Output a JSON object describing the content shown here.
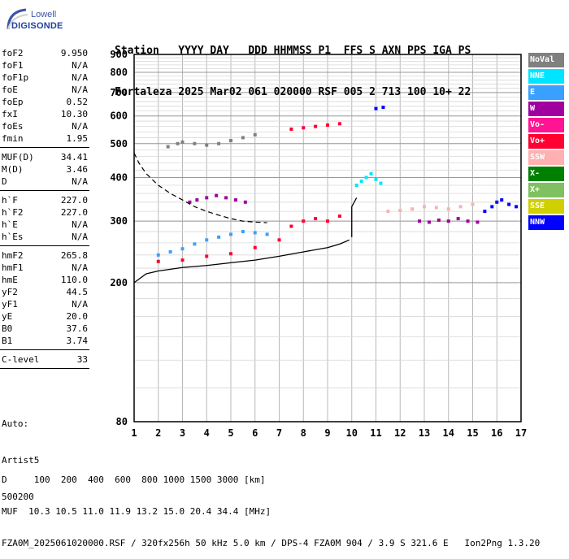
{
  "logo": {
    "line1": "Lowell",
    "line2": "DIGISONDE"
  },
  "header": {
    "line1": "Station   YYYY DAY   DDD HHMMSS P1  FFS S AXN PPS IGA PS",
    "line2": "Fortaleza 2025 Mar02 061 020000 RSF 005 2 713 100 10+ 22"
  },
  "params": [
    [
      {
        "name": "foF2",
        "value": "9.950"
      },
      {
        "name": "foF1",
        "value": "N/A"
      },
      {
        "name": "foF1p",
        "value": "N/A"
      },
      {
        "name": "foE",
        "value": "N/A"
      },
      {
        "name": "foEp",
        "value": "0.52"
      },
      {
        "name": "fxI",
        "value": "10.30"
      },
      {
        "name": "foEs",
        "value": "N/A"
      },
      {
        "name": "fmin",
        "value": "1.95"
      }
    ],
    [
      {
        "name": "MUF(D)",
        "value": "34.41"
      },
      {
        "name": "M(D)",
        "value": "3.46"
      },
      {
        "name": "D",
        "value": "N/A"
      }
    ],
    [
      {
        "name": "h`F",
        "value": "227.0"
      },
      {
        "name": "h`F2",
        "value": "227.0"
      },
      {
        "name": "h`E",
        "value": "N/A"
      },
      {
        "name": "h`Es",
        "value": "N/A"
      }
    ],
    [
      {
        "name": "hmF2",
        "value": "265.8"
      },
      {
        "name": "hmF1",
        "value": "N/A"
      },
      {
        "name": "hmE",
        "value": "110.0"
      },
      {
        "name": "yF2",
        "value": "44.5"
      },
      {
        "name": "yF1",
        "value": "N/A"
      },
      {
        "name": "yE",
        "value": "20.0"
      },
      {
        "name": "B0",
        "value": "37.6"
      },
      {
        "name": "B1",
        "value": "3.74"
      }
    ],
    [
      {
        "name": "C-level",
        "value": "33"
      }
    ]
  ],
  "auto": {
    "line1": "Auto:",
    "line2": "Artist5",
    "line3": "500200"
  },
  "legend": [
    {
      "label": "NoVal",
      "color": "#808080"
    },
    {
      "label": "NNE",
      "color": "#00e5ff"
    },
    {
      "label": "E",
      "color": "#3aa0ff"
    },
    {
      "label": "W",
      "color": "#a000a0"
    },
    {
      "label": "Vo-",
      "color": "#ff1493"
    },
    {
      "label": "Vo+",
      "color": "#ff0030"
    },
    {
      "label": "SSW",
      "color": "#ffb0b0"
    },
    {
      "label": "X-",
      "color": "#008000"
    },
    {
      "label": "X+",
      "color": "#80c060"
    },
    {
      "label": "SSE",
      "color": "#d0d000"
    },
    {
      "label": "NNW",
      "color": "#0000ff"
    }
  ],
  "bottom": {
    "line1": "D     100  200  400  600  800 1000 1500 3000 [km]",
    "line2": "MUF  10.3 10.5 11.0 11.9 13.2 15.0 20.4 34.4 [MHz]",
    "line3": "FZA0M_2025061020000.RSF / 320fx256h 50 kHz 5.0 km / DPS-4 FZA0M 904 / 3.9 S 321.6 E   Ion2Png 1.3.20"
  },
  "chart_data": {
    "type": "scatter",
    "xlim": [
      1,
      17
    ],
    "ylim": [
      80,
      900
    ],
    "x_ticks": [
      1,
      2,
      3,
      4,
      5,
      6,
      7,
      8,
      9,
      10,
      11,
      12,
      13,
      14,
      15,
      16,
      17
    ],
    "y_ticks": [
      80,
      200,
      300,
      400,
      500,
      600,
      700,
      800,
      900
    ],
    "grid": true,
    "y_scale": "log",
    "legend_placement": "right",
    "traces": [
      {
        "name": "E",
        "x": [
          2.0,
          2.5,
          3.0,
          3.5,
          4.0,
          4.5,
          5.0,
          5.5,
          6.0,
          6.5
        ],
        "y": [
          240,
          245,
          250,
          258,
          265,
          270,
          275,
          280,
          278,
          275
        ]
      },
      {
        "name": "W",
        "x": [
          3.3,
          3.6,
          4.0,
          4.4,
          4.8,
          5.2,
          5.6
        ],
        "y": [
          340,
          345,
          350,
          355,
          350,
          345,
          340
        ]
      },
      {
        "name": "Vo+",
        "x": [
          2.0,
          3.0,
          4.0,
          5.0,
          6.0,
          7.0,
          7.5,
          8.0,
          8.5,
          9.0,
          9.5
        ],
        "y": [
          230,
          232,
          238,
          242,
          252,
          265,
          290,
          300,
          305,
          300,
          310
        ]
      },
      {
        "name": "NNE",
        "x": [
          10.2,
          10.4,
          10.6,
          10.8,
          11.0,
          11.2
        ],
        "y": [
          380,
          390,
          400,
          410,
          395,
          385
        ]
      },
      {
        "name": "SSW",
        "x": [
          11.5,
          12.0,
          12.5,
          13.0,
          13.5,
          14.0,
          14.5,
          15.0
        ],
        "y": [
          320,
          322,
          325,
          330,
          328,
          325,
          330,
          335
        ]
      },
      {
        "name": "W",
        "x": [
          12.8,
          13.2,
          13.6,
          14.0,
          14.4,
          14.8,
          15.2
        ],
        "y": [
          300,
          298,
          302,
          300,
          305,
          300,
          298
        ]
      },
      {
        "name": "NNW",
        "x": [
          15.5,
          15.8,
          16.0,
          16.2,
          16.5,
          16.8
        ],
        "y": [
          320,
          330,
          340,
          345,
          335,
          330
        ]
      },
      {
        "name": "NoVal",
        "x": [
          2.4,
          2.8,
          3.0,
          3.5,
          4.0,
          4.5,
          5.0,
          5.5,
          6.0
        ],
        "y": [
          490,
          500,
          505,
          500,
          495,
          500,
          510,
          520,
          530
        ]
      },
      {
        "name": "Vo+",
        "x": [
          7.5,
          8.0,
          8.5,
          9.0,
          9.5
        ],
        "y": [
          550,
          555,
          560,
          565,
          570
        ]
      },
      {
        "name": "NNW",
        "x": [
          11.0,
          11.3
        ],
        "y": [
          630,
          635
        ]
      }
    ],
    "profile_curve": {
      "x": [
        1.0,
        1.5,
        2.0,
        3.0,
        4.0,
        5.0,
        6.0,
        7.0,
        8.0,
        9.0,
        9.5,
        9.9
      ],
      "y": [
        200,
        212,
        216,
        221,
        224,
        228,
        232,
        238,
        245,
        252,
        258,
        265
      ]
    },
    "dashed_curve": {
      "x": [
        1.0,
        1.2,
        1.5,
        2.0,
        2.5,
        3.0,
        3.5,
        4.0,
        4.5,
        5.0,
        5.5,
        6.0,
        6.5
      ],
      "y": [
        470,
        440,
        410,
        380,
        360,
        345,
        330,
        320,
        312,
        305,
        300,
        298,
        297
      ]
    },
    "vertical_line": {
      "x": [
        10.0,
        10.0,
        10.2
      ],
      "y": [
        270,
        330,
        350
      ]
    }
  }
}
